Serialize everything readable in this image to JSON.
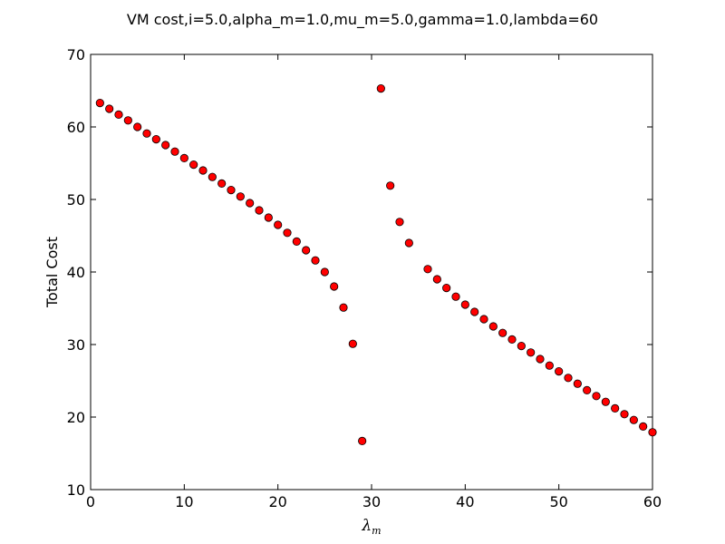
{
  "chart_data": {
    "type": "scatter",
    "title": "VM cost,i=5.0,alpha_m=1.0,mu_m=5.0,gamma=1.0,lambda=60",
    "xlabel": "λ",
    "xlabel_sub": "m",
    "ylabel": "Total Cost",
    "xlim": [
      0,
      60
    ],
    "ylim": [
      10,
      70
    ],
    "xticks": [
      "0",
      "10",
      "20",
      "30",
      "40",
      "50",
      "60"
    ],
    "yticks": [
      "10",
      "20",
      "30",
      "40",
      "50",
      "60",
      "70"
    ],
    "grid": false,
    "marker_color": "#ff0000",
    "marker_edge": "#000000",
    "series": [
      {
        "x": [
          1,
          2,
          3,
          4,
          5,
          6,
          7,
          8,
          9,
          10,
          11,
          12,
          13,
          14,
          15,
          16,
          17,
          18,
          19,
          20,
          21,
          22,
          23,
          24,
          25,
          26,
          27,
          28,
          29,
          31,
          32,
          33,
          34,
          36,
          37,
          38,
          39,
          40,
          41,
          42,
          43,
          44,
          45,
          46,
          47,
          48,
          49,
          50,
          51,
          52,
          53,
          54,
          55,
          56,
          57,
          58,
          59,
          60
        ],
        "y": [
          63.3,
          62.5,
          61.7,
          60.9,
          60.0,
          59.1,
          58.3,
          57.5,
          56.6,
          55.7,
          54.8,
          54.0,
          53.1,
          52.2,
          51.3,
          50.4,
          49.5,
          48.5,
          47.5,
          46.5,
          45.4,
          44.2,
          43.0,
          41.6,
          40.0,
          38.0,
          35.1,
          30.1,
          16.7,
          65.3,
          51.9,
          46.9,
          44.0,
          40.4,
          39.0,
          37.8,
          36.6,
          35.5,
          34.5,
          33.5,
          32.5,
          31.6,
          30.7,
          29.8,
          28.9,
          28.0,
          27.1,
          26.3,
          25.4,
          24.6,
          23.7,
          22.9,
          22.1,
          21.2,
          20.4,
          19.6,
          18.7,
          17.9
        ]
      }
    ]
  }
}
